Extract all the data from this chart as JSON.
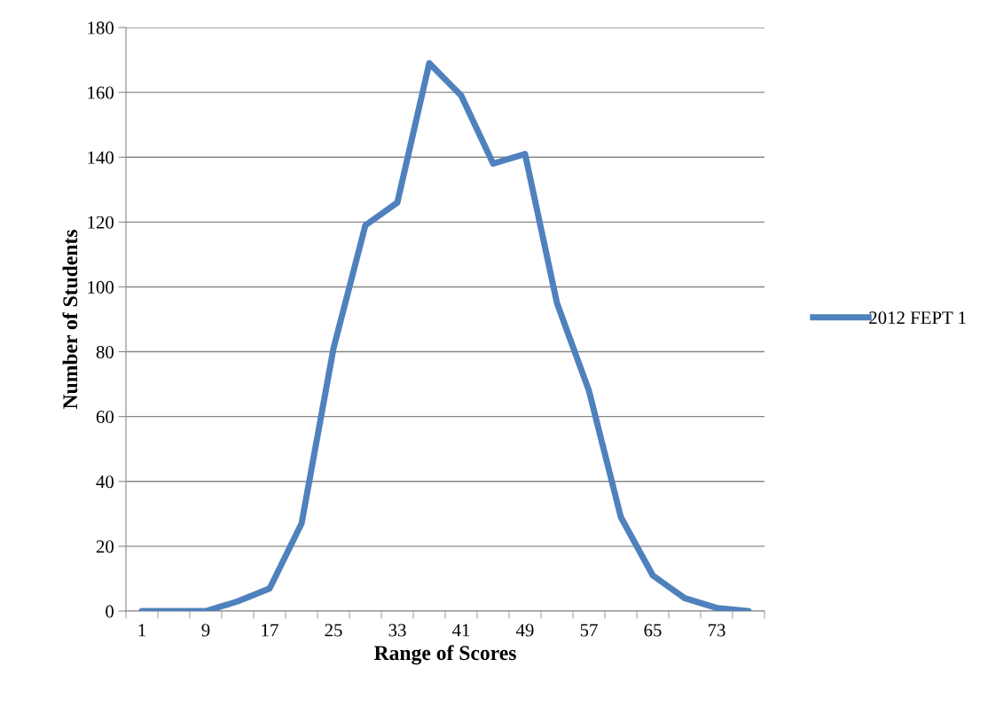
{
  "chart_data": {
    "type": "line",
    "xlabel": "Range of Scores",
    "ylabel": "Number of Students",
    "categories": [
      "1",
      null,
      "9",
      null,
      "17",
      null,
      "25",
      null,
      "33",
      null,
      "41",
      null,
      "49",
      null,
      "57",
      null,
      "65",
      null,
      "73",
      null
    ],
    "series": [
      {
        "name": "2012 FEPT 1",
        "color": "#4f81bd",
        "values": [
          0,
          0,
          0,
          3,
          7,
          27,
          81,
          119,
          126,
          169,
          159,
          138,
          141,
          95,
          68,
          29,
          11,
          4,
          1,
          0
        ]
      }
    ],
    "ylim": [
      0,
      180
    ],
    "yticks": [
      0,
      20,
      40,
      60,
      80,
      100,
      120,
      140,
      160,
      180
    ],
    "grid": "y",
    "legend": "right",
    "marker": "none",
    "line_style": "solid"
  }
}
